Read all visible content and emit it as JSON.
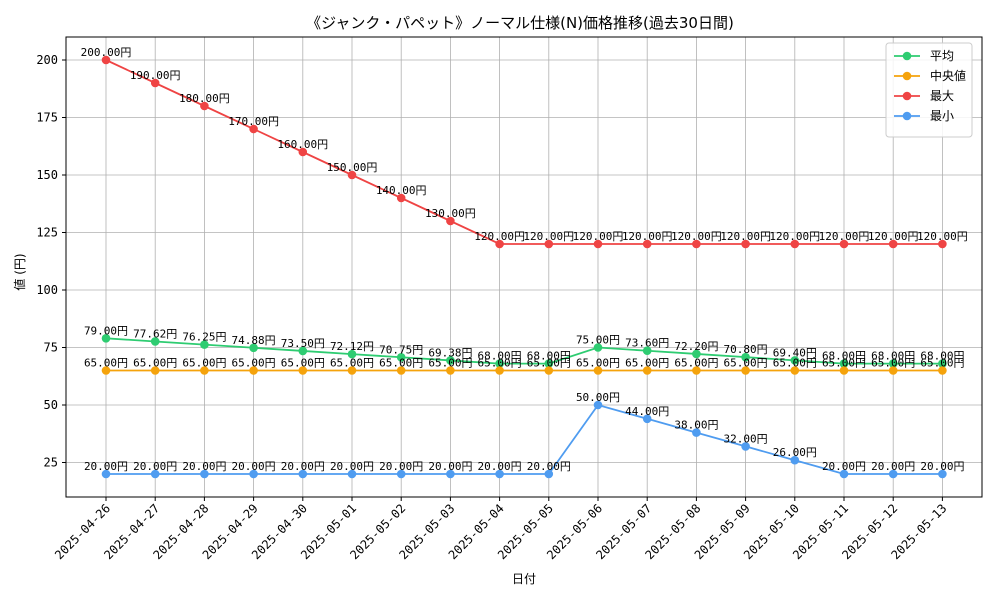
{
  "chart_data": {
    "type": "line",
    "title": "《ジャンク・パペット》ノーマル仕様(N)価格推移(過去30日間)",
    "xlabel": "日付",
    "ylabel": "値 (円)",
    "ylim": [
      10,
      210
    ],
    "yticks": [
      25,
      50,
      75,
      100,
      125,
      150,
      175,
      200
    ],
    "grid": true,
    "legend_position": "top-right",
    "label_suffix": "円",
    "categories": [
      "2025-04-26",
      "2025-04-27",
      "2025-04-28",
      "2025-04-29",
      "2025-04-30",
      "2025-05-01",
      "2025-05-02",
      "2025-05-03",
      "2025-05-04",
      "2025-05-05",
      "2025-05-06",
      "2025-05-07",
      "2025-05-08",
      "2025-05-09",
      "2025-05-10",
      "2025-05-11",
      "2025-05-12",
      "2025-05-13"
    ],
    "series": [
      {
        "name": "平均",
        "color": "#2ecc71",
        "labels": [
          "79.00円",
          "77.62円",
          "76.25円",
          "74.88円",
          "73.50円",
          "72.12円",
          "70.75円",
          "69.38円",
          "68.00円",
          "68.00円",
          "75.00円",
          "73.60円",
          "72.20円",
          "70.80円",
          "69.40円",
          "68.00円",
          "68.00円",
          "68.00円"
        ],
        "values": [
          79.0,
          77.62,
          76.25,
          74.88,
          73.5,
          72.12,
          70.75,
          69.38,
          68.0,
          68.0,
          75.0,
          73.6,
          72.2,
          70.8,
          69.4,
          68.0,
          68.0,
          68.0
        ]
      },
      {
        "name": "中央値",
        "color": "#f5a30c",
        "labels": [
          "65.00円",
          "65.00円",
          "65.00円",
          "65.00円",
          "65.00円",
          "65.00円",
          "65.00円",
          "65.00円",
          "65.00円",
          "65.00円",
          "65.00円",
          "65.00円",
          "65.00円",
          "65.00円",
          "65.00円",
          "65.00円",
          "65.00円",
          "65.00円"
        ],
        "values": [
          65,
          65,
          65,
          65,
          65,
          65,
          65,
          65,
          65,
          65,
          65,
          65,
          65,
          65,
          65,
          65,
          65,
          65
        ]
      },
      {
        "name": "最大",
        "color": "#ef4444",
        "labels": [
          "200.00円",
          "190.00円",
          "180.00円",
          "170.00円",
          "160.00円",
          "150.00円",
          "140.00円",
          "130.00円",
          "120.00円",
          "120.00円",
          "120.00円",
          "120.00円",
          "120.00円",
          "120.00円",
          "120.00円",
          "120.00円",
          "120.00円",
          "120.00円"
        ],
        "values": [
          200,
          190,
          180,
          170,
          160,
          150,
          140,
          130,
          120,
          120,
          120,
          120,
          120,
          120,
          120,
          120,
          120,
          120
        ]
      },
      {
        "name": "最小",
        "color": "#4f9cf0",
        "labels": [
          "20.00円",
          "20.00円",
          "20.00円",
          "20.00円",
          "20.00円",
          "20.00円",
          "20.00円",
          "20.00円",
          "20.00円",
          "20.00円",
          "50.00円",
          "44.00円",
          "38.00円",
          "32.00円",
          "26.00円",
          "20.00円",
          "20.00円",
          "20.00円"
        ],
        "values": [
          20,
          20,
          20,
          20,
          20,
          20,
          20,
          20,
          20,
          20,
          50,
          44,
          38,
          32,
          26,
          20,
          20,
          20
        ]
      }
    ]
  }
}
